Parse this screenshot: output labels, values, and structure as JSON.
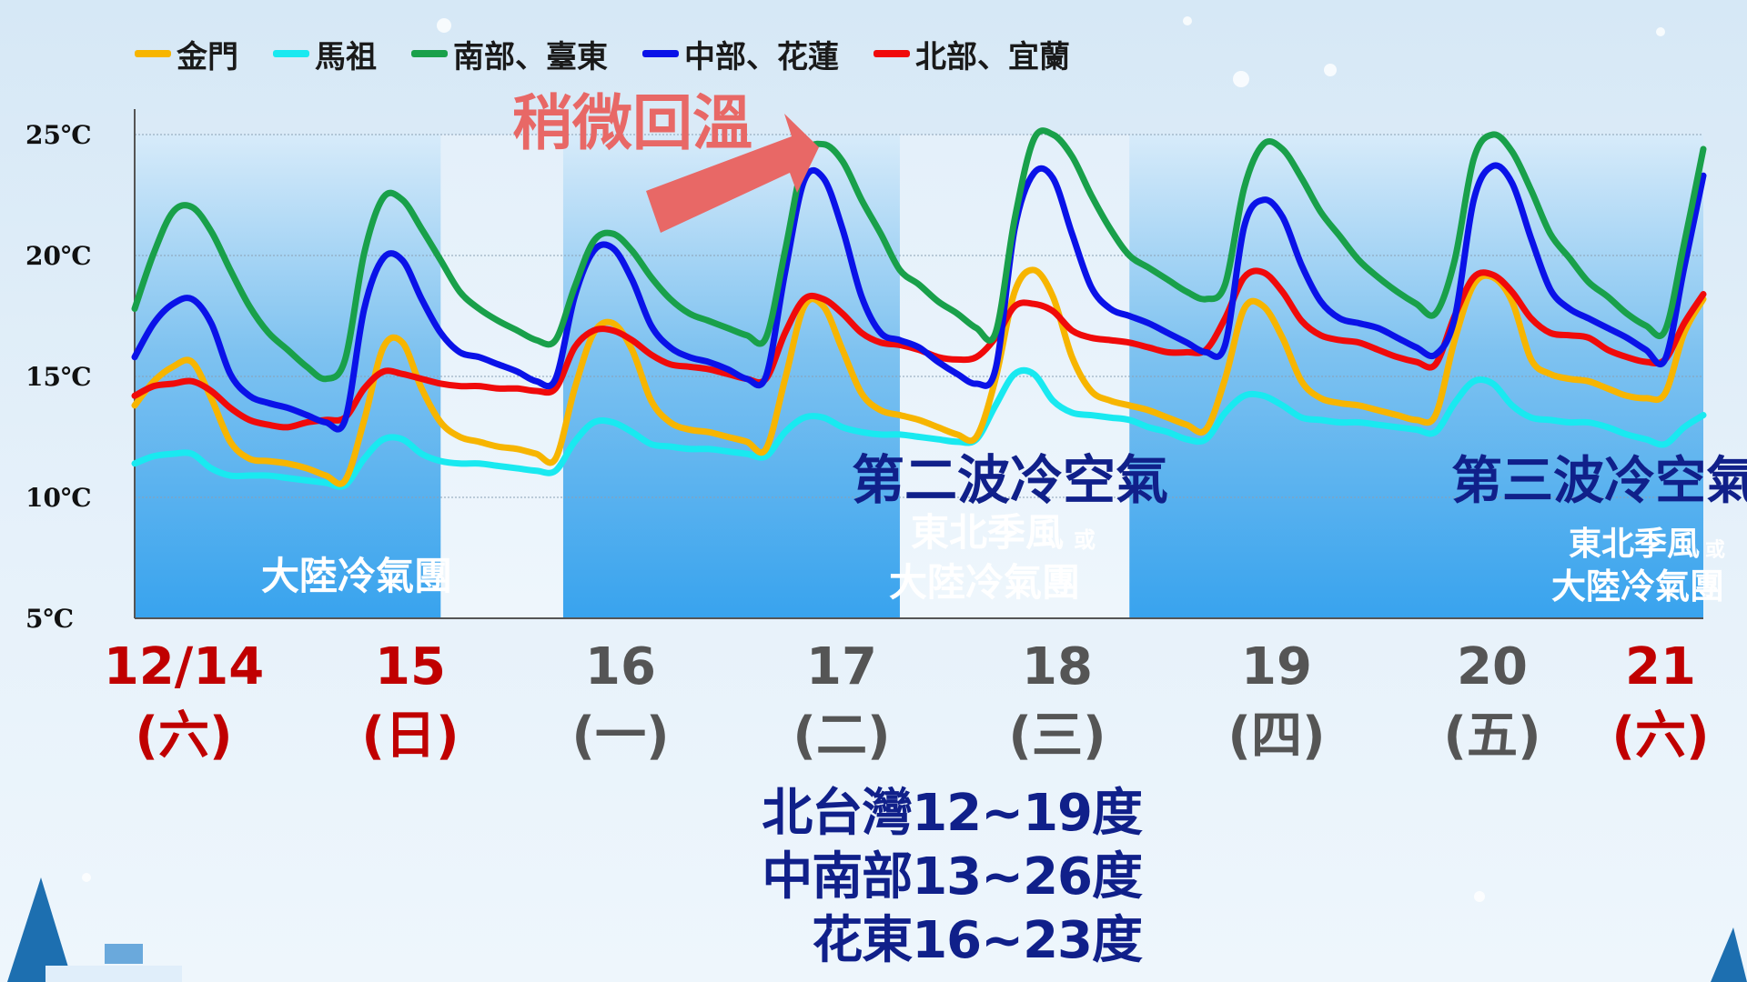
{
  "legend": [
    {
      "name": "金門",
      "color": "#f7b500"
    },
    {
      "name": "馬祖",
      "color": "#19e9f0"
    },
    {
      "name": "南部、臺東",
      "color": "#19a04a"
    },
    {
      "name": "中部、花蓮",
      "color": "#0a12e8"
    },
    {
      "name": "北部、宜蘭",
      "color": "#f00a0a"
    }
  ],
  "annotations": {
    "warming": "稍微回溫",
    "wave2_title": "第二波冷空氣",
    "wave2_sub1": "東北季風",
    "wave2_sub1_small": "或",
    "wave2_sub2": "大陸冷氣團",
    "wave3_title": "第三波冷空氣",
    "wave3_sub1": "東北季風",
    "wave3_sub1_small": "或",
    "wave3_sub2": "大陸冷氣團",
    "wave1_label": "大陸冷氣團"
  },
  "days": [
    {
      "date": "12/14",
      "weekday": "(六)",
      "color": "#c00000"
    },
    {
      "date": "15",
      "weekday": "(日)",
      "color": "#c00000"
    },
    {
      "date": "16",
      "weekday": "(一)",
      "color": "#555555"
    },
    {
      "date": "17",
      "weekday": "(二)",
      "color": "#555555"
    },
    {
      "date": "18",
      "weekday": "(三)",
      "color": "#555555"
    },
    {
      "date": "19",
      "weekday": "(四)",
      "color": "#555555"
    },
    {
      "date": "20",
      "weekday": "(五)",
      "color": "#555555"
    },
    {
      "date": "21",
      "weekday": "(六)",
      "color": "#c00000"
    }
  ],
  "summary": {
    "north": "北台灣12~19度",
    "central_south": "中南部13~26度",
    "hualien_taitung": "花東16~23度"
  },
  "chart_data": {
    "type": "line",
    "ylim": [
      5,
      25
    ],
    "yticks": [
      "5℃",
      "10℃",
      "15℃",
      "20℃",
      "25℃"
    ],
    "ytick_values": [
      5,
      10,
      15,
      20,
      25
    ],
    "x_start_day": 14,
    "x_step_hours": 3,
    "series": [
      {
        "name": "南部、臺東",
        "color": "#19a04a",
        "values": [
          17.8,
          20.1,
          21.8,
          22.0,
          21.0,
          19.4,
          17.9,
          16.8,
          16.1,
          15.4,
          14.9,
          15.7,
          20.1,
          22.4,
          22.3,
          21.1,
          19.8,
          18.5,
          17.8,
          17.3,
          16.9,
          16.5,
          16.5,
          18.7,
          20.6,
          20.9,
          20.2,
          19.1,
          18.2,
          17.6,
          17.3,
          17.0,
          16.7,
          16.6,
          20.2,
          24.0,
          24.6,
          23.9,
          22.3,
          20.9,
          19.4,
          18.8,
          18.1,
          17.6,
          17.0,
          16.8,
          21.5,
          24.8,
          25.0,
          24.1,
          22.5,
          21.1,
          20.0,
          19.5,
          19.0,
          18.5,
          18.2,
          18.8,
          22.8,
          24.6,
          24.4,
          23.2,
          21.8,
          20.8,
          19.8,
          19.1,
          18.5,
          18.0,
          17.6,
          19.8,
          24.0,
          25.0,
          24.3,
          22.7,
          20.9,
          19.9,
          18.9,
          18.3,
          17.6,
          17.1,
          16.9,
          20.5,
          24.4
        ]
      },
      {
        "name": "中部、花蓮",
        "color": "#0a12e8",
        "values": [
          15.8,
          17.2,
          18.0,
          18.2,
          17.2,
          15.1,
          14.2,
          13.9,
          13.7,
          13.4,
          13.1,
          13.2,
          17.8,
          19.9,
          19.8,
          18.2,
          16.8,
          16.0,
          15.8,
          15.5,
          15.2,
          14.8,
          14.9,
          18.3,
          20.2,
          20.3,
          19.0,
          17.1,
          16.2,
          15.8,
          15.6,
          15.3,
          14.9,
          15.0,
          19.3,
          23.1,
          23.2,
          21.1,
          18.3,
          16.8,
          16.5,
          16.2,
          15.6,
          15.1,
          14.7,
          15.3,
          21.1,
          23.4,
          23.2,
          20.9,
          18.7,
          17.8,
          17.5,
          17.2,
          16.8,
          16.4,
          16.0,
          16.3,
          21.2,
          22.3,
          21.6,
          19.6,
          18.1,
          17.4,
          17.2,
          17.0,
          16.6,
          16.2,
          15.9,
          17.4,
          22.3,
          23.7,
          23.0,
          20.7,
          18.6,
          17.8,
          17.4,
          17.0,
          16.6,
          16.1,
          15.7,
          19.5,
          23.3
        ]
      },
      {
        "name": "北部、宜蘭",
        "color": "#f00a0a",
        "values": [
          14.2,
          14.6,
          14.7,
          14.8,
          14.4,
          13.7,
          13.2,
          13.0,
          12.9,
          13.1,
          13.2,
          13.3,
          14.5,
          15.2,
          15.1,
          14.9,
          14.7,
          14.6,
          14.6,
          14.5,
          14.5,
          14.4,
          14.5,
          16.2,
          16.9,
          16.9,
          16.5,
          15.9,
          15.5,
          15.4,
          15.3,
          15.1,
          14.9,
          14.9,
          16.8,
          18.2,
          18.2,
          17.6,
          16.8,
          16.4,
          16.3,
          16.1,
          15.8,
          15.7,
          15.8,
          16.6,
          17.9,
          18.0,
          17.7,
          16.9,
          16.6,
          16.5,
          16.4,
          16.2,
          16.0,
          16.0,
          16.1,
          17.4,
          19.1,
          19.3,
          18.5,
          17.3,
          16.7,
          16.5,
          16.4,
          16.1,
          15.8,
          15.6,
          15.5,
          17.5,
          19.1,
          19.2,
          18.5,
          17.4,
          16.8,
          16.7,
          16.6,
          16.1,
          15.8,
          15.6,
          15.7,
          17.2,
          18.4
        ]
      },
      {
        "name": "金門",
        "color": "#f7b500",
        "values": [
          13.8,
          14.8,
          15.4,
          15.6,
          14.1,
          12.3,
          11.6,
          11.5,
          11.4,
          11.2,
          10.9,
          10.7,
          13.2,
          16.2,
          16.4,
          14.5,
          13.1,
          12.5,
          12.3,
          12.1,
          12.0,
          11.8,
          11.6,
          14.5,
          16.8,
          17.2,
          16.1,
          14.0,
          13.1,
          12.8,
          12.7,
          12.5,
          12.3,
          12.0,
          14.9,
          17.9,
          17.9,
          16.1,
          14.3,
          13.6,
          13.4,
          13.2,
          12.9,
          12.6,
          12.5,
          14.9,
          18.5,
          19.4,
          18.3,
          15.8,
          14.4,
          14.0,
          13.8,
          13.6,
          13.3,
          13.0,
          12.8,
          14.9,
          17.8,
          17.9,
          16.6,
          14.8,
          14.1,
          13.9,
          13.8,
          13.6,
          13.4,
          13.2,
          13.4,
          16.5,
          18.8,
          19.1,
          18.1,
          15.7,
          15.1,
          14.9,
          14.8,
          14.5,
          14.2,
          14.1,
          14.3,
          16.8,
          18.2
        ]
      },
      {
        "name": "馬祖",
        "color": "#19e9f0",
        "values": [
          11.4,
          11.7,
          11.8,
          11.8,
          11.2,
          10.9,
          10.9,
          10.9,
          10.8,
          10.7,
          10.6,
          10.5,
          11.6,
          12.4,
          12.4,
          11.8,
          11.5,
          11.4,
          11.4,
          11.3,
          11.2,
          11.1,
          11.1,
          12.3,
          13.1,
          13.1,
          12.7,
          12.2,
          12.1,
          12.0,
          12.0,
          11.9,
          11.8,
          11.7,
          12.7,
          13.3,
          13.3,
          12.9,
          12.7,
          12.6,
          12.6,
          12.5,
          12.4,
          12.3,
          12.4,
          13.8,
          15.1,
          15.1,
          14.0,
          13.5,
          13.4,
          13.3,
          13.2,
          12.9,
          12.7,
          12.4,
          12.4,
          13.5,
          14.2,
          14.2,
          13.8,
          13.3,
          13.2,
          13.1,
          13.1,
          13.0,
          12.9,
          12.8,
          12.7,
          13.9,
          14.8,
          14.7,
          13.8,
          13.3,
          13.2,
          13.1,
          13.1,
          12.9,
          12.6,
          12.4,
          12.2,
          12.9,
          13.4
        ]
      }
    ]
  }
}
